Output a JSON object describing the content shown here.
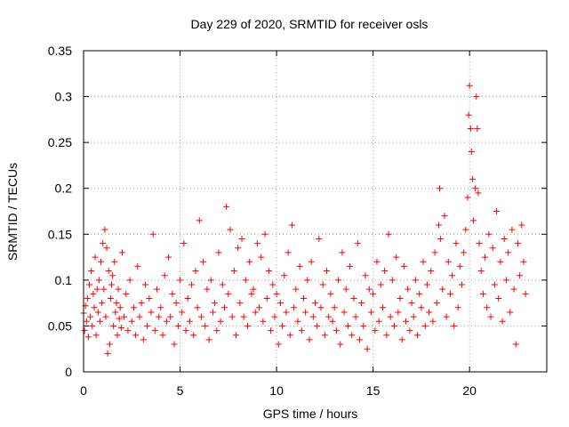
{
  "chart_data": {
    "type": "scatter",
    "title": "Day 229 of 2020, SRMTID for receiver osls",
    "xlabel": "GPS time / hours",
    "ylabel": "SRMTID / TECUs",
    "xlim": [
      0,
      24
    ],
    "ylim": [
      0,
      0.35
    ],
    "x_ticks": [
      0,
      5,
      10,
      15,
      20
    ],
    "x_tick_labels": [
      "0",
      "5",
      "10",
      "15",
      "20"
    ],
    "y_ticks": [
      0,
      0.05,
      0.1,
      0.15,
      0.2,
      0.25,
      0.3,
      0.35
    ],
    "y_tick_labels": [
      "0",
      "0.05",
      "0.1",
      "0.15",
      "0.2",
      "0.25",
      "0.3",
      "0.35"
    ],
    "grid": true,
    "marker": "+",
    "color": "#ff0000",
    "series": [
      {
        "name": "SRMTID",
        "points": [
          [
            0.0,
            0.064
          ],
          [
            0.05,
            0.045
          ],
          [
            0.1,
            0.072
          ],
          [
            0.15,
            0.055
          ],
          [
            0.2,
            0.08
          ],
          [
            0.25,
            0.038
          ],
          [
            0.3,
            0.095
          ],
          [
            0.35,
            0.06
          ],
          [
            0.4,
            0.11
          ],
          [
            0.45,
            0.05
          ],
          [
            0.5,
            0.085
          ],
          [
            0.55,
            0.07
          ],
          [
            0.6,
            0.125
          ],
          [
            0.65,
            0.04
          ],
          [
            0.7,
            0.09
          ],
          [
            0.75,
            0.065
          ],
          [
            0.8,
            0.1
          ],
          [
            0.85,
            0.055
          ],
          [
            0.9,
            0.12
          ],
          [
            0.95,
            0.075
          ],
          [
            1.0,
            0.14
          ],
          [
            1.05,
            0.09
          ],
          [
            1.1,
            0.155
          ],
          [
            1.15,
            0.06
          ],
          [
            1.2,
            0.135
          ],
          [
            1.25,
            0.02
          ],
          [
            1.3,
            0.11
          ],
          [
            1.35,
            0.03
          ],
          [
            1.4,
            0.08
          ],
          [
            1.45,
            0.095
          ],
          [
            1.5,
            0.105
          ],
          [
            1.55,
            0.05
          ],
          [
            1.6,
            0.12
          ],
          [
            1.65,
            0.065
          ],
          [
            1.7,
            0.075
          ],
          [
            1.75,
            0.04
          ],
          [
            1.8,
            0.09
          ],
          [
            1.85,
            0.058
          ],
          [
            1.9,
            0.07
          ],
          [
            1.95,
            0.048
          ],
          [
            2.0,
            0.13
          ],
          [
            2.1,
            0.06
          ],
          [
            2.2,
            0.085
          ],
          [
            2.3,
            0.045
          ],
          [
            2.4,
            0.1
          ],
          [
            2.5,
            0.055
          ],
          [
            2.6,
            0.07
          ],
          [
            2.7,
            0.04
          ],
          [
            2.8,
            0.115
          ],
          [
            2.9,
            0.06
          ],
          [
            3.0,
            0.075
          ],
          [
            3.1,
            0.035
          ],
          [
            3.2,
            0.095
          ],
          [
            3.3,
            0.05
          ],
          [
            3.4,
            0.08
          ],
          [
            3.5,
            0.065
          ],
          [
            3.6,
            0.15
          ],
          [
            3.7,
            0.045
          ],
          [
            3.8,
            0.09
          ],
          [
            3.9,
            0.06
          ],
          [
            4.0,
            0.07
          ],
          [
            4.1,
            0.04
          ],
          [
            4.2,
            0.105
          ],
          [
            4.3,
            0.055
          ],
          [
            4.4,
            0.125
          ],
          [
            4.5,
            0.06
          ],
          [
            4.6,
            0.085
          ],
          [
            4.7,
            0.03
          ],
          [
            4.8,
            0.075
          ],
          [
            4.9,
            0.05
          ],
          [
            5.0,
            0.1
          ],
          [
            5.1,
            0.065
          ],
          [
            5.2,
            0.14
          ],
          [
            5.3,
            0.045
          ],
          [
            5.4,
            0.08
          ],
          [
            5.5,
            0.055
          ],
          [
            5.6,
            0.095
          ],
          [
            5.7,
            0.04
          ],
          [
            5.8,
            0.11
          ],
          [
            5.9,
            0.07
          ],
          [
            6.0,
            0.165
          ],
          [
            6.1,
            0.06
          ],
          [
            6.2,
            0.12
          ],
          [
            6.3,
            0.05
          ],
          [
            6.4,
            0.09
          ],
          [
            6.5,
            0.035
          ],
          [
            6.6,
            0.1
          ],
          [
            6.7,
            0.065
          ],
          [
            6.8,
            0.075
          ],
          [
            6.9,
            0.045
          ],
          [
            7.0,
            0.13
          ],
          [
            7.1,
            0.055
          ],
          [
            7.2,
            0.095
          ],
          [
            7.3,
            0.07
          ],
          [
            7.4,
            0.18
          ],
          [
            7.5,
            0.085
          ],
          [
            7.6,
            0.155
          ],
          [
            7.7,
            0.06
          ],
          [
            7.8,
            0.11
          ],
          [
            7.9,
            0.04
          ],
          [
            8.0,
            0.135
          ],
          [
            8.1,
            0.075
          ],
          [
            8.2,
            0.145
          ],
          [
            8.3,
            0.06
          ],
          [
            8.4,
            0.1
          ],
          [
            8.5,
            0.05
          ],
          [
            8.6,
            0.12
          ],
          [
            8.7,
            0.085
          ],
          [
            8.8,
            0.09
          ],
          [
            8.9,
            0.065
          ],
          [
            9.0,
            0.14
          ],
          [
            9.1,
            0.07
          ],
          [
            9.2,
            0.125
          ],
          [
            9.3,
            0.055
          ],
          [
            9.4,
            0.15
          ],
          [
            9.5,
            0.08
          ],
          [
            9.6,
            0.11
          ],
          [
            9.7,
            0.045
          ],
          [
            9.8,
            0.095
          ],
          [
            9.9,
            0.06
          ],
          [
            10.0,
            0.085
          ],
          [
            10.1,
            0.03
          ],
          [
            10.2,
            0.075
          ],
          [
            10.3,
            0.05
          ],
          [
            10.4,
            0.105
          ],
          [
            10.5,
            0.065
          ],
          [
            10.6,
            0.13
          ],
          [
            10.7,
            0.04
          ],
          [
            10.8,
            0.16
          ],
          [
            10.9,
            0.07
          ],
          [
            11.0,
            0.09
          ],
          [
            11.1,
            0.055
          ],
          [
            11.2,
            0.115
          ],
          [
            11.3,
            0.045
          ],
          [
            11.4,
            0.08
          ],
          [
            11.5,
            0.065
          ],
          [
            11.6,
            0.1
          ],
          [
            11.7,
            0.035
          ],
          [
            11.8,
            0.12
          ],
          [
            11.9,
            0.06
          ],
          [
            12.0,
            0.075
          ],
          [
            12.1,
            0.05
          ],
          [
            12.2,
            0.145
          ],
          [
            12.3,
            0.07
          ],
          [
            12.4,
            0.095
          ],
          [
            12.5,
            0.04
          ],
          [
            12.6,
            0.11
          ],
          [
            12.7,
            0.06
          ],
          [
            12.8,
            0.085
          ],
          [
            12.9,
            0.055
          ],
          [
            13.0,
            0.07
          ],
          [
            13.1,
            0.045
          ],
          [
            13.2,
            0.1
          ],
          [
            13.3,
            0.03
          ],
          [
            13.4,
            0.13
          ],
          [
            13.5,
            0.065
          ],
          [
            13.6,
            0.09
          ],
          [
            13.7,
            0.05
          ],
          [
            13.8,
            0.115
          ],
          [
            13.9,
            0.04
          ],
          [
            14.0,
            0.08
          ],
          [
            14.1,
            0.06
          ],
          [
            14.2,
            0.14
          ],
          [
            14.3,
            0.035
          ],
          [
            14.4,
            0.075
          ],
          [
            14.5,
            0.05
          ],
          [
            14.6,
            0.105
          ],
          [
            14.7,
            0.025
          ],
          [
            14.8,
            0.09
          ],
          [
            14.9,
            0.065
          ],
          [
            15.0,
            0.085
          ],
          [
            15.1,
            0.045
          ],
          [
            15.2,
            0.12
          ],
          [
            15.3,
            0.055
          ],
          [
            15.4,
            0.095
          ],
          [
            15.5,
            0.07
          ],
          [
            15.6,
            0.11
          ],
          [
            15.7,
            0.04
          ],
          [
            15.8,
            0.15
          ],
          [
            15.9,
            0.06
          ],
          [
            16.0,
            0.1
          ],
          [
            16.1,
            0.05
          ],
          [
            16.2,
            0.125
          ],
          [
            16.3,
            0.065
          ],
          [
            16.4,
            0.08
          ],
          [
            16.5,
            0.035
          ],
          [
            16.6,
            0.115
          ],
          [
            16.7,
            0.055
          ],
          [
            16.8,
            0.09
          ],
          [
            16.9,
            0.045
          ],
          [
            17.0,
            0.075
          ],
          [
            17.1,
            0.06
          ],
          [
            17.2,
            0.1
          ],
          [
            17.3,
            0.04
          ],
          [
            17.4,
            0.085
          ],
          [
            17.5,
            0.07
          ],
          [
            17.6,
            0.12
          ],
          [
            17.7,
            0.05
          ],
          [
            17.8,
            0.095
          ],
          [
            17.9,
            0.065
          ],
          [
            18.0,
            0.11
          ],
          [
            18.1,
            0.055
          ],
          [
            18.2,
            0.13
          ],
          [
            18.3,
            0.075
          ],
          [
            18.4,
            0.16
          ],
          [
            18.45,
            0.2
          ],
          [
            18.5,
            0.145
          ],
          [
            18.6,
            0.09
          ],
          [
            18.7,
            0.17
          ],
          [
            18.8,
            0.06
          ],
          [
            18.9,
            0.12
          ],
          [
            19.0,
            0.085
          ],
          [
            19.1,
            0.105
          ],
          [
            19.2,
            0.05
          ],
          [
            19.3,
            0.14
          ],
          [
            19.4,
            0.07
          ],
          [
            19.5,
            0.115
          ],
          [
            19.6,
            0.095
          ],
          [
            19.7,
            0.13
          ],
          [
            19.8,
            0.155
          ],
          [
            19.9,
            0.19
          ],
          [
            19.95,
            0.28
          ],
          [
            20.0,
            0.312
          ],
          [
            20.05,
            0.265
          ],
          [
            20.1,
            0.24
          ],
          [
            20.15,
            0.21
          ],
          [
            20.2,
            0.165
          ],
          [
            20.3,
            0.2
          ],
          [
            20.35,
            0.3
          ],
          [
            20.4,
            0.265
          ],
          [
            20.45,
            0.195
          ],
          [
            20.5,
            0.14
          ],
          [
            20.6,
            0.11
          ],
          [
            20.7,
            0.085
          ],
          [
            20.8,
            0.125
          ],
          [
            20.9,
            0.07
          ],
          [
            21.0,
            0.15
          ],
          [
            21.1,
            0.06
          ],
          [
            21.2,
            0.135
          ],
          [
            21.3,
            0.095
          ],
          [
            21.4,
            0.175
          ],
          [
            21.5,
            0.08
          ],
          [
            21.6,
            0.12
          ],
          [
            21.7,
            0.055
          ],
          [
            21.8,
            0.145
          ],
          [
            21.9,
            0.1
          ],
          [
            22.0,
            0.13
          ],
          [
            22.1,
            0.065
          ],
          [
            22.2,
            0.155
          ],
          [
            22.3,
            0.09
          ],
          [
            22.4,
            0.03
          ],
          [
            22.5,
            0.14
          ],
          [
            22.6,
            0.105
          ],
          [
            22.7,
            0.16
          ],
          [
            22.8,
            0.12
          ],
          [
            22.9,
            0.085
          ]
        ]
      }
    ]
  }
}
